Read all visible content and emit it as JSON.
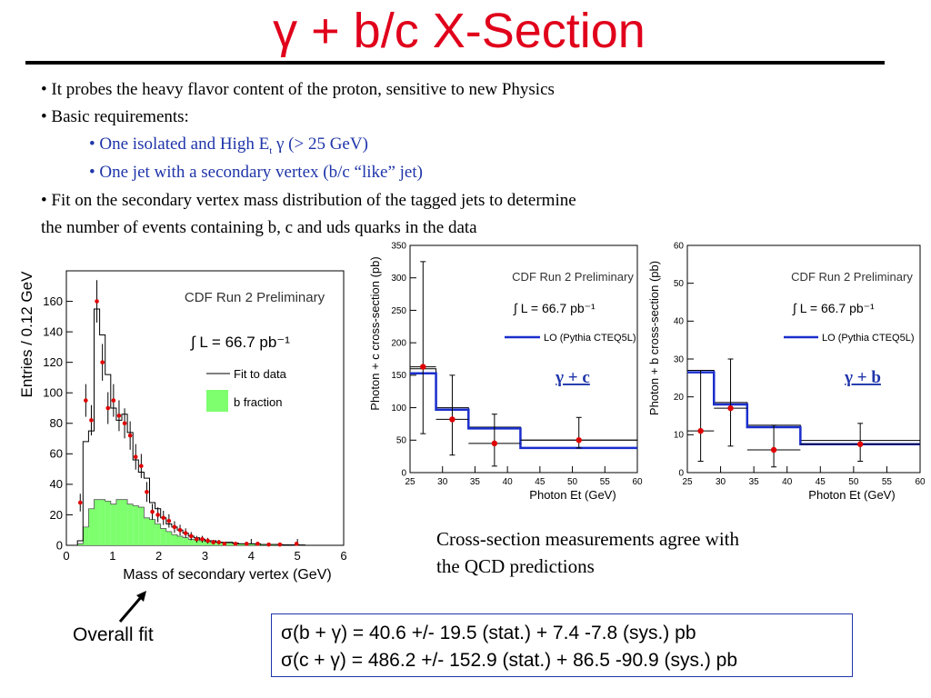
{
  "slide": {
    "title": "γ + b/c X-Section"
  },
  "bullets": {
    "b1": "• It probes the heavy flavor content of the proton, sensitive to new Physics",
    "b2": "• Basic requirements:",
    "b3_pre": "• One isolated and High E",
    "b3_sub": "t",
    "b3_post": " γ (> 25 GeV)",
    "b4": "• One jet with a secondary vertex (b/c “like” jet)",
    "b5a": "• Fit on the secondary vertex mass distribution of the tagged jets to determine",
    "b5b": "the number of events containing b, c and uds quarks in the data"
  },
  "caption": {
    "line1": "Cross-section measurements agree with",
    "line2": "the QCD predictions"
  },
  "annotation": {
    "overall_fit": "Overall fit"
  },
  "results": {
    "r1": "σ(b + γ) = 40.6 +/- 19.5 (stat.) + 7.4 -7.8 (sys.) pb",
    "r2": "σ(c + γ) = 486.2 +/- 152.9 (stat.) + 86.5 -90.9 (sys.) pb"
  },
  "colors": {
    "title": "#e0001b",
    "bullet_blue": "#1f35a9",
    "lo_line": "#1a2ecc",
    "data_point": "#e00000",
    "b_fraction_fill": "#7dff6e"
  },
  "chart_data": [
    {
      "type": "bar",
      "title": "CDF Run 2 Preliminary",
      "annotation": "∫ L = 66.7 pb⁻¹",
      "xlabel": "Mass of secondary vertex (GeV)",
      "ylabel": "Entries / 0.12 GeV",
      "xlim": [
        0,
        6
      ],
      "ylim": [
        0,
        180
      ],
      "xticks": [
        "0",
        "1",
        "2",
        "3",
        "4",
        "5",
        "6"
      ],
      "yticks": [
        "0",
        "20",
        "40",
        "60",
        "80",
        "100",
        "120",
        "140",
        "160"
      ],
      "legend_position": "top-right",
      "bin_width": 0.12,
      "series": [
        {
          "name": "Fit to data",
          "style": "step",
          "x": [
            0.24,
            0.36,
            0.48,
            0.6,
            0.72,
            0.84,
            0.96,
            1.08,
            1.2,
            1.32,
            1.44,
            1.56,
            1.68,
            1.8,
            1.92,
            2.04,
            2.16,
            2.28,
            2.4,
            2.52,
            2.64,
            2.76,
            2.88,
            3.0,
            3.12,
            3.24,
            3.36,
            3.48,
            3.6,
            3.72,
            3.84,
            3.96,
            4.08,
            4.2,
            4.32,
            4.44,
            4.56,
            4.68,
            4.8,
            4.92,
            5.04,
            5.16
          ],
          "values": [
            3,
            68,
            75,
            155,
            138,
            112,
            90,
            82,
            86,
            74,
            56,
            48,
            44,
            28,
            24,
            18,
            14,
            12,
            10,
            8,
            6,
            5,
            4,
            3,
            3,
            2,
            2,
            2,
            1.5,
            1,
            1,
            1,
            1,
            0.5,
            0.5,
            0.5,
            0.5,
            0.3,
            0.3,
            0.3,
            0.2,
            0
          ]
        },
        {
          "name": "b fraction",
          "style": "filled-step",
          "x": [
            0.24,
            0.36,
            0.48,
            0.6,
            0.72,
            0.84,
            0.96,
            1.08,
            1.2,
            1.32,
            1.44,
            1.56,
            1.68,
            1.8,
            1.92,
            2.04,
            2.16,
            2.28,
            2.4,
            2.52,
            2.64,
            2.76,
            2.88,
            3.0,
            3.12,
            3.24,
            3.36,
            3.48,
            3.6,
            3.72,
            3.84,
            3.96,
            4.08,
            4.2,
            4.32,
            4.44,
            4.56,
            4.68,
            4.8,
            4.92,
            5.04,
            5.16
          ],
          "values": [
            1,
            12,
            24,
            30,
            30,
            29,
            27,
            30,
            30,
            27,
            26,
            25,
            18,
            17,
            14,
            11,
            9,
            7,
            6,
            5,
            4,
            3.5,
            3,
            2.5,
            2,
            2,
            1.5,
            1.5,
            1,
            1,
            1,
            1,
            0.5,
            0.5,
            0.5,
            0.5,
            0.3,
            0.3,
            0.3,
            0.2,
            0.2,
            0
          ]
        },
        {
          "name": "Data",
          "style": "points",
          "x": [
            0.3,
            0.42,
            0.54,
            0.66,
            0.78,
            0.9,
            1.02,
            1.14,
            1.26,
            1.38,
            1.5,
            1.62,
            1.74,
            1.86,
            1.98,
            2.1,
            2.22,
            2.34,
            2.46,
            2.58,
            2.7,
            2.82,
            2.94,
            3.06,
            3.18,
            3.3,
            3.42,
            3.66,
            3.9,
            4.14,
            4.38,
            4.62,
            4.98
          ],
          "values": [
            28,
            95,
            82,
            160,
            120,
            90,
            95,
            85,
            80,
            72,
            58,
            52,
            35,
            22,
            20,
            18,
            16,
            12,
            10,
            8,
            6,
            4,
            4,
            3,
            2,
            2,
            1,
            1,
            1,
            1,
            0.5,
            0.5,
            1
          ]
        }
      ]
    },
    {
      "type": "line",
      "title": "CDF Run 2 Preliminary",
      "annotation": "∫ L = 66.7 pb⁻¹",
      "label": "γ + c",
      "xlabel": "Photon Et (GeV)",
      "ylabel": "Photon + c cross-section (pb)",
      "xlim": [
        25,
        60
      ],
      "ylim": [
        0,
        350
      ],
      "xticks": [
        "25",
        "30",
        "35",
        "40",
        "45",
        "50",
        "55",
        "60"
      ],
      "yticks": [
        "0",
        "50",
        "100",
        "150",
        "200",
        "250",
        "300",
        "350"
      ],
      "legend_position": "top-right",
      "series": [
        {
          "name": "LO (Pythia CTEQ5L)",
          "style": "step",
          "edges": [
            25,
            29,
            34,
            42,
            60
          ],
          "values": [
            153,
            97,
            68,
            38
          ]
        },
        {
          "name": "MC band",
          "style": "step",
          "edges": [
            25,
            29,
            34,
            42,
            60
          ],
          "values": [
            160,
            100,
            70,
            50
          ]
        },
        {
          "name": "Data",
          "style": "points",
          "x": [
            27,
            31.5,
            38,
            51
          ],
          "values": [
            163,
            82,
            45,
            50
          ],
          "xerr": [
            [
              25,
              29
            ],
            [
              29,
              34
            ],
            [
              34,
              42
            ],
            [
              42,
              60
            ]
          ],
          "yerr_low": [
            60,
            27,
            10,
            38
          ],
          "yerr_high": [
            325,
            150,
            90,
            85
          ]
        }
      ]
    },
    {
      "type": "line",
      "title": "CDF Run 2 Preliminary",
      "annotation": "∫ L = 66.7 pb⁻¹",
      "label": "γ + b",
      "xlabel": "Photon Et (GeV)",
      "ylabel": "Photon + b cross-section (pb)",
      "xlim": [
        25,
        60
      ],
      "ylim": [
        0,
        60
      ],
      "xticks": [
        "25",
        "30",
        "35",
        "40",
        "45",
        "50",
        "55",
        "60"
      ],
      "yticks": [
        "0",
        "10",
        "20",
        "30",
        "40",
        "50",
        "60"
      ],
      "legend_position": "top-right",
      "series": [
        {
          "name": "LO (Pythia CTEQ5L)",
          "style": "step",
          "edges": [
            25,
            29,
            34,
            42,
            60
          ],
          "values": [
            26.5,
            18,
            12,
            7.5
          ]
        },
        {
          "name": "MC band",
          "style": "step",
          "edges": [
            25,
            29,
            34,
            42,
            60
          ],
          "values": [
            27,
            18.5,
            12.5,
            8.5
          ]
        },
        {
          "name": "Data",
          "style": "points",
          "x": [
            27,
            31.5,
            38,
            51
          ],
          "values": [
            11,
            17,
            6,
            7.5
          ],
          "xerr": [
            [
              25,
              29
            ],
            [
              29,
              34
            ],
            [
              34,
              42
            ],
            [
              42,
              60
            ]
          ],
          "yerr_low": [
            3,
            7,
            1.5,
            3
          ],
          "yerr_high": [
            27,
            30,
            12.5,
            13
          ]
        }
      ]
    }
  ]
}
